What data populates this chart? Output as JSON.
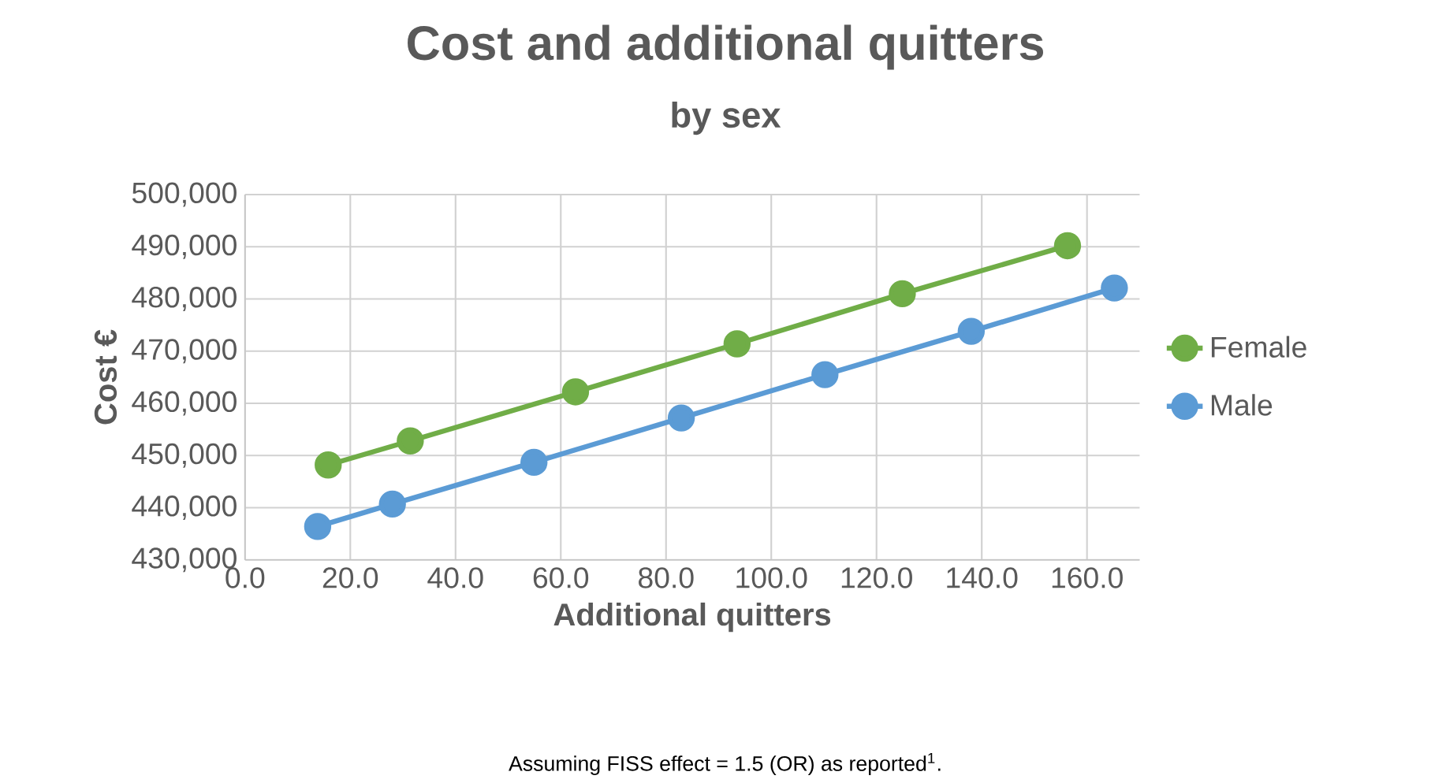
{
  "chart_data": {
    "type": "line",
    "title": "Cost and additional quitters",
    "subtitle": "by sex",
    "xlabel": "Additional quitters",
    "ylabel": "Cost €",
    "xlim": [
      0,
      170
    ],
    "xticks": [
      {
        "value": 0,
        "label": "0.0"
      },
      {
        "value": 20,
        "label": "20.0"
      },
      {
        "value": 40,
        "label": "40.0"
      },
      {
        "value": 60,
        "label": "60.0"
      },
      {
        "value": 80,
        "label": "80.0"
      },
      {
        "value": 100,
        "label": "100.0"
      },
      {
        "value": 120,
        "label": "120.0"
      },
      {
        "value": 140,
        "label": "140.0"
      },
      {
        "value": 160,
        "label": "160.0"
      }
    ],
    "ylim": [
      430000,
      500000
    ],
    "yticks": [
      {
        "value": 430000,
        "label": "430,000"
      },
      {
        "value": 440000,
        "label": "440,000"
      },
      {
        "value": 450000,
        "label": "450,000"
      },
      {
        "value": 460000,
        "label": "460,000"
      },
      {
        "value": 470000,
        "label": "470,000"
      },
      {
        "value": 480000,
        "label": "480,000"
      },
      {
        "value": 490000,
        "label": "490,000"
      },
      {
        "value": 500000,
        "label": "500,000"
      }
    ],
    "grid": true,
    "legend": "right",
    "marker": "circle",
    "line_style": "solid",
    "series": [
      {
        "name": "Female",
        "color": "#70ad47",
        "x": [
          15.8,
          31.4,
          62.8,
          93.5,
          124.9,
          156.3
        ],
        "values": [
          448200,
          452800,
          462200,
          471400,
          481000,
          490200
        ]
      },
      {
        "name": "Male",
        "color": "#5b9bd5",
        "x": [
          13.8,
          28.0,
          54.9,
          82.9,
          110.2,
          138.0,
          165.2
        ],
        "values": [
          436400,
          440700,
          448700,
          457200,
          465500,
          473800,
          482100
        ]
      }
    ],
    "annotations": [
      "Assuming FISS effect = 1.5 (OR) as reported$^{1}$."
    ]
  }
}
